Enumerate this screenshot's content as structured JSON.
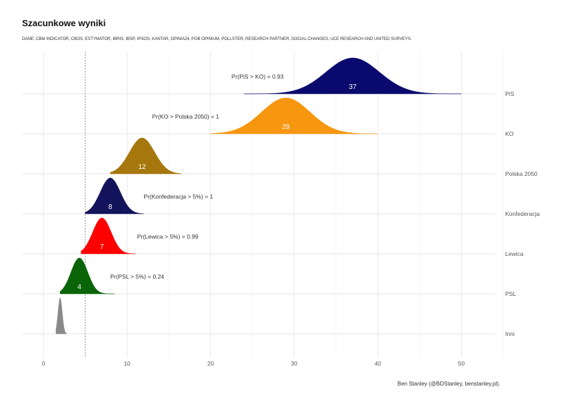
{
  "title": "Szacunkowe wyniki",
  "subtitle": "DANE: CBM INDICATOR, CBOS, ESTYMATOR, IBRIS, IBSP, IPSOS, KANTAR, OPINIA24, PGB OPINIUM, POLLSTER, RESEARCH PARTNER, SOCIAL CHANGES, UCE RESEARCH AND UNITED SURVEYS.",
  "caption": "Ben Stanley (@BDStanley, benstanley.pl).",
  "chart_data": {
    "type": "area",
    "title": "Szacunkowe wyniki",
    "xlim": [
      -3,
      55
    ],
    "x_ticks": [
      0,
      10,
      20,
      30,
      40,
      50
    ],
    "threshold_line": 5,
    "grid": true,
    "legend": "none",
    "series": [
      {
        "name": "PiS",
        "median": 37,
        "sd": 3.2,
        "range": [
          24,
          50
        ],
        "color": "#0a0a6e",
        "value_label": "37",
        "annotation": "Pr(PiS > KO) = 0.93",
        "annotation_x": 22.5
      },
      {
        "name": "KO",
        "median": 29,
        "sd": 2.9,
        "range": [
          20,
          40
        ],
        "color": "#f7960f",
        "value_label": "29",
        "annotation": "Pr(KO > Polska 2050) = 1",
        "annotation_x": 13
      },
      {
        "name": "Polska 2050",
        "median": 11.8,
        "sd": 1.5,
        "range": [
          8,
          16.5
        ],
        "color": "#a6770c",
        "value_label": "12",
        "annotation": "",
        "annotation_x": 0
      },
      {
        "name": "Konfederacja",
        "median": 8,
        "sd": 1.2,
        "range": [
          5,
          12
        ],
        "color": "#14145c",
        "value_label": "8",
        "annotation": "Pr(Konfederacja > 5%) = 1",
        "annotation_x": 12
      },
      {
        "name": "Lewica",
        "median": 7,
        "sd": 1.1,
        "range": [
          4.5,
          11
        ],
        "color": "#ff0000",
        "value_label": "7",
        "annotation": "Pr(Lewica > 5%) = 0.99",
        "annotation_x": 11.2
      },
      {
        "name": "PSL",
        "median": 4.3,
        "sd": 1.0,
        "range": [
          2,
          8.5
        ],
        "color": "#0a6408",
        "value_label": "4",
        "annotation": "Pr(PSL > 5%) = 0.24",
        "annotation_x": 8
      },
      {
        "name": "Inni",
        "median": 2,
        "sd": 0.25,
        "range": [
          1.5,
          2.8
        ],
        "color": "#8a8a8a",
        "value_label": "",
        "annotation": "",
        "annotation_x": 0
      }
    ]
  }
}
